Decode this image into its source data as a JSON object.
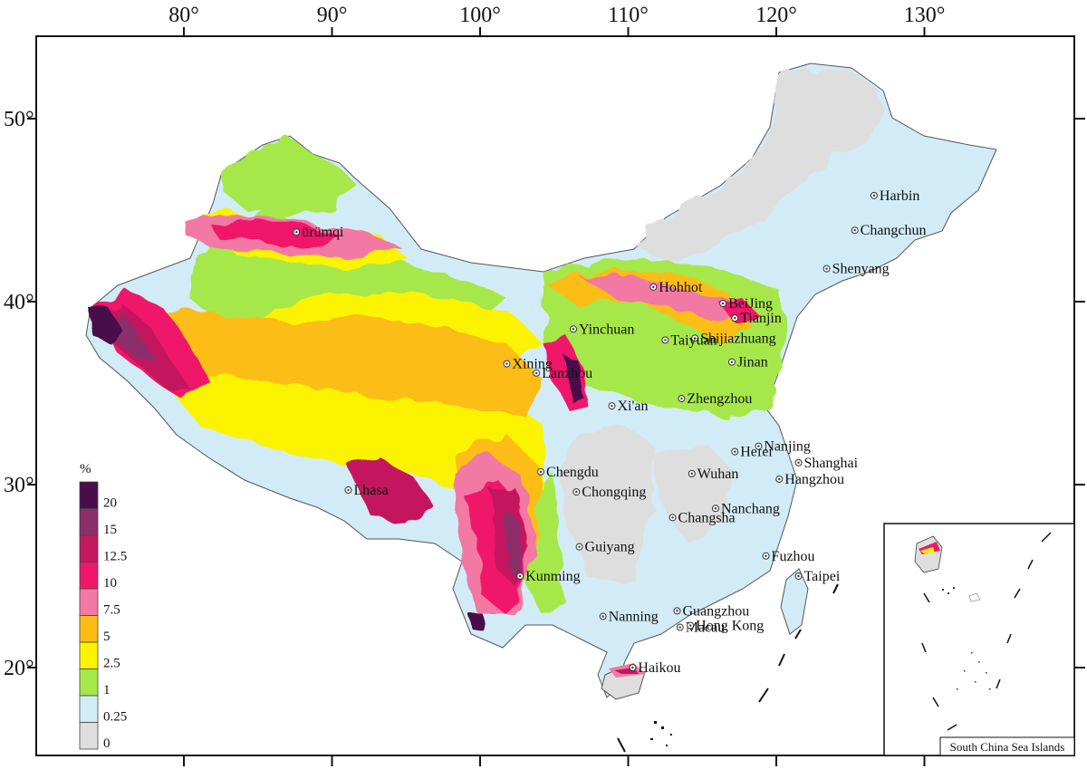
{
  "map": {
    "lon_ticks": [
      "80°",
      "90°",
      "100°",
      "110°",
      "120°",
      "130°"
    ],
    "lat_ticks": [
      "50°",
      "40°",
      "30°",
      "20°"
    ],
    "lon_values": [
      80,
      90,
      100,
      110,
      120,
      130
    ],
    "lat_values": [
      50,
      40,
      30,
      20
    ],
    "cities": [
      {
        "name": "ürümqi",
        "lon": 87.6,
        "lat": 43.8
      },
      {
        "name": "Harbin",
        "lon": 126.6,
        "lat": 45.8
      },
      {
        "name": "Changchun",
        "lon": 125.3,
        "lat": 43.9
      },
      {
        "name": "Shenyang",
        "lon": 123.4,
        "lat": 41.8
      },
      {
        "name": "Hohhot",
        "lon": 111.7,
        "lat": 40.8
      },
      {
        "name": "BeiJing",
        "lon": 116.4,
        "lat": 39.9
      },
      {
        "name": "Tianjin",
        "lon": 117.2,
        "lat": 39.1
      },
      {
        "name": "Yinchuan",
        "lon": 106.3,
        "lat": 38.5
      },
      {
        "name": "Shijiazhuang",
        "lon": 114.5,
        "lat": 38.0
      },
      {
        "name": "Taiyuan",
        "lon": 112.5,
        "lat": 37.9
      },
      {
        "name": "Xining",
        "lon": 101.8,
        "lat": 36.6
      },
      {
        "name": "Lanzhou",
        "lon": 103.8,
        "lat": 36.1
      },
      {
        "name": "Jinan",
        "lon": 117.0,
        "lat": 36.7
      },
      {
        "name": "Zhengzhou",
        "lon": 113.6,
        "lat": 34.7
      },
      {
        "name": "Xi'an",
        "lon": 108.9,
        "lat": 34.3
      },
      {
        "name": "Hefei",
        "lon": 117.2,
        "lat": 31.8
      },
      {
        "name": "Nanjing",
        "lon": 118.8,
        "lat": 32.1
      },
      {
        "name": "Shanghai",
        "lon": 121.5,
        "lat": 31.2
      },
      {
        "name": "Chengdu",
        "lon": 104.1,
        "lat": 30.7
      },
      {
        "name": "Wuhan",
        "lon": 114.3,
        "lat": 30.6
      },
      {
        "name": "Hangzhou",
        "lon": 120.2,
        "lat": 30.3
      },
      {
        "name": "Lhasa",
        "lon": 91.1,
        "lat": 29.7
      },
      {
        "name": "Chongqing",
        "lon": 106.5,
        "lat": 29.6
      },
      {
        "name": "Nanchang",
        "lon": 115.9,
        "lat": 28.7
      },
      {
        "name": "Changsha",
        "lon": 113.0,
        "lat": 28.2
      },
      {
        "name": "Guiyang",
        "lon": 106.7,
        "lat": 26.6
      },
      {
        "name": "Fuzhou",
        "lon": 119.3,
        "lat": 26.1
      },
      {
        "name": "Kunming",
        "lon": 102.7,
        "lat": 25.0
      },
      {
        "name": "Taipei",
        "lon": 121.5,
        "lat": 25.0
      },
      {
        "name": "Guangzhou",
        "lon": 113.3,
        "lat": 23.1
      },
      {
        "name": "Nanning",
        "lon": 108.3,
        "lat": 22.8
      },
      {
        "name": "Macau",
        "lon": 113.5,
        "lat": 22.2
      },
      {
        "name": "Hong Kong",
        "lon": 114.2,
        "lat": 22.3
      },
      {
        "name": "Haikou",
        "lon": 110.3,
        "lat": 20.0
      }
    ]
  },
  "legend": {
    "unit": "%",
    "classes": [
      {
        "label": "20",
        "color": "#4a0d4c"
      },
      {
        "label": "15",
        "color": "#8c2e6a"
      },
      {
        "label": "12.5",
        "color": "#c4195e"
      },
      {
        "label": "10",
        "color": "#f0176a"
      },
      {
        "label": "7.5",
        "color": "#f279a3"
      },
      {
        "label": "5",
        "color": "#fbbd14"
      },
      {
        "label": "2.5",
        "color": "#fbf300"
      },
      {
        "label": "1",
        "color": "#a6e84a"
      },
      {
        "label": "0.25",
        "color": "#d2ecf7"
      },
      {
        "label": "0",
        "color": "#dedede"
      }
    ]
  },
  "inset": {
    "caption": "South China Sea Islands"
  }
}
